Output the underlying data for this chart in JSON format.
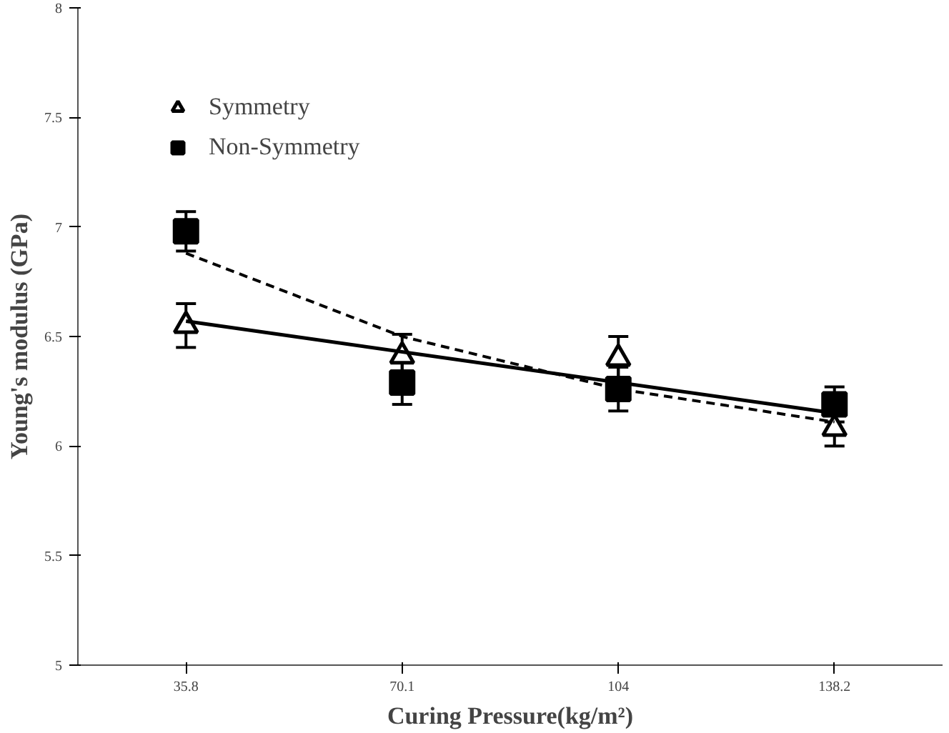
{
  "chart_data": {
    "type": "scatter",
    "xlabel": "Curing Pressure(kg/m²)",
    "ylabel": "Young's modulus (GPa)",
    "categories": [
      "35.8",
      "70.1",
      "104",
      "138.2"
    ],
    "ylim": [
      5,
      8
    ],
    "yticks": [
      5,
      5.5,
      6,
      6.5,
      7,
      7.5,
      8
    ],
    "grid": false,
    "legend": "top left",
    "series": [
      {
        "name": "Symmetry",
        "color": "#000000",
        "marker": "triangle",
        "values": [
          6.55,
          6.41,
          6.4,
          6.08
        ],
        "errors": [
          0.1,
          0.1,
          0.1,
          0.08
        ]
      },
      {
        "name": "Non-Symmetry",
        "color": "#000000",
        "marker": "square",
        "values": [
          6.98,
          6.29,
          6.26,
          6.19
        ],
        "errors": [
          0.09,
          0.1,
          0.1,
          0.08
        ]
      },
      {
        "type": "line",
        "color": "#000000",
        "line_style": "solid",
        "x": [
          "35.8",
          "138.2"
        ],
        "values": [
          6.57,
          6.15
        ]
      },
      {
        "type": "line",
        "color": "#000000",
        "line_style": "dashed",
        "x": [
          "35.8",
          "70.1",
          "104",
          "138.2"
        ],
        "values": [
          6.88,
          6.5,
          6.26,
          6.11
        ]
      }
    ]
  }
}
